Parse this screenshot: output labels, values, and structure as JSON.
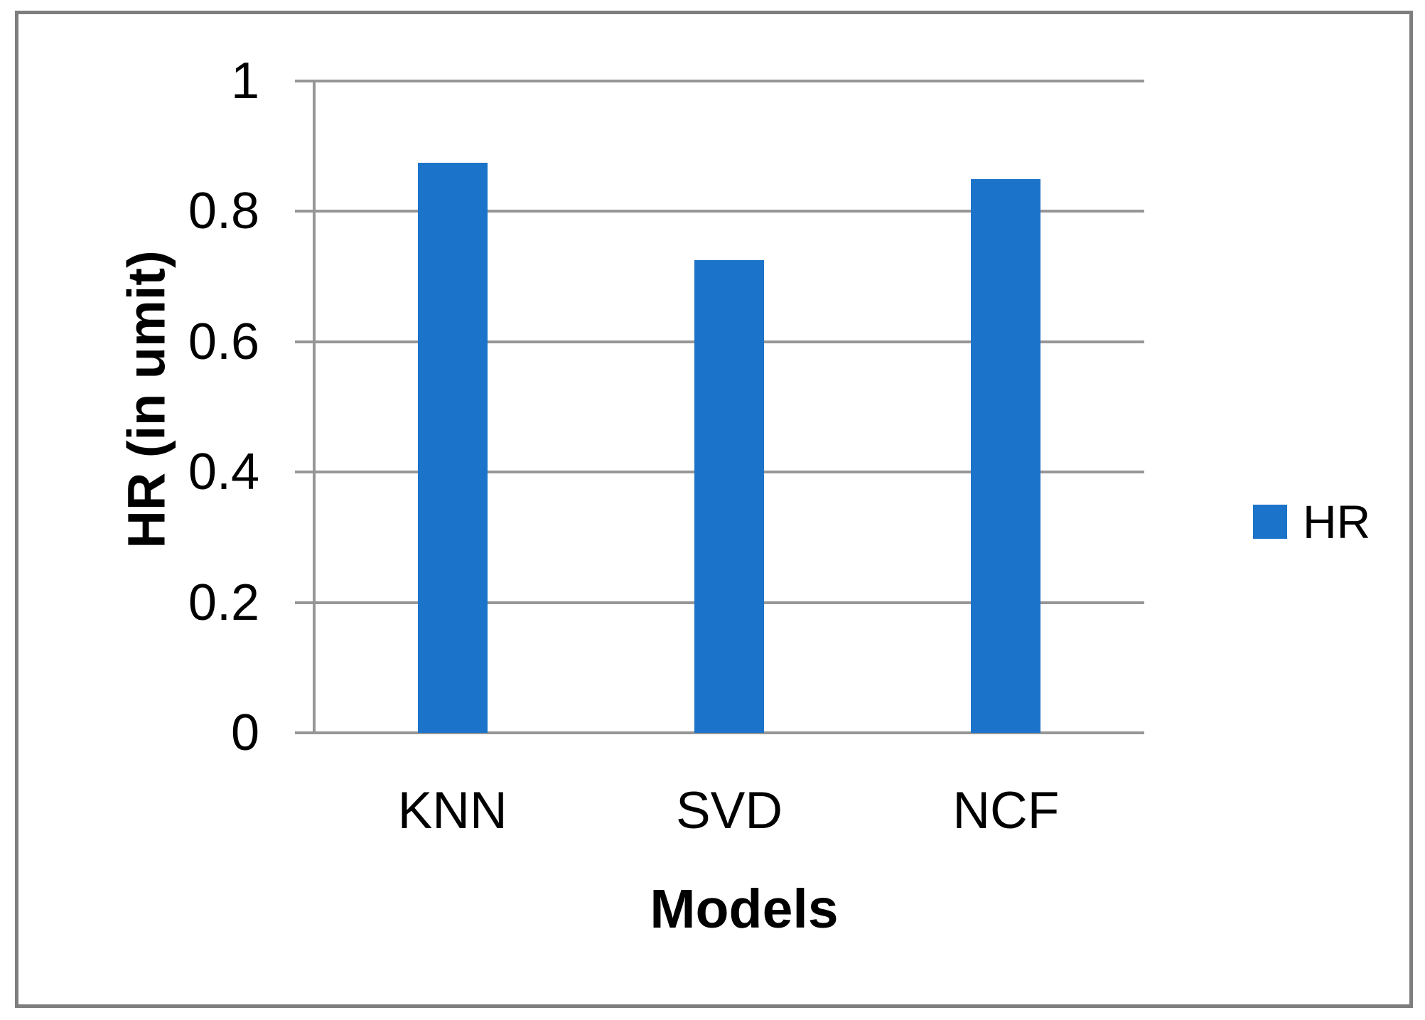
{
  "chart_data": {
    "type": "bar",
    "title": "",
    "categories": [
      "KNN",
      "SVD",
      "NCF"
    ],
    "series": [
      {
        "name": "HR",
        "values": [
          0.875,
          0.725,
          0.85
        ]
      }
    ],
    "xlabel": "Models",
    "ylabel": "HR (in umit)",
    "ylim": [
      0,
      1
    ],
    "ytick_values": [
      0,
      0.2,
      0.4,
      0.6,
      0.8,
      1
    ],
    "ytick_labels": [
      "0",
      "0.2",
      "0.4",
      "0.6",
      "0.8",
      "1"
    ],
    "grid": true,
    "legend": {
      "position": "right",
      "entries": [
        "HR"
      ]
    },
    "colors": {
      "bar": "#1b74c9",
      "gridline": "#969696",
      "axis": "#8f8f8f",
      "frame_border": "#7e7e7e",
      "text": "#000000"
    }
  }
}
